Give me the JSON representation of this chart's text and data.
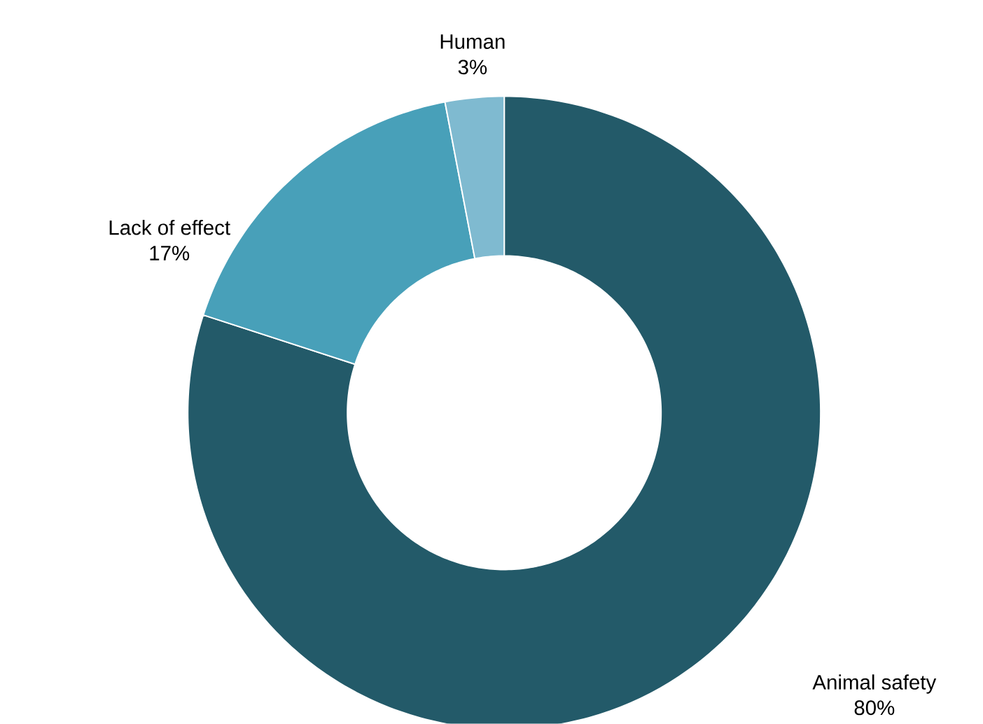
{
  "chart_data": {
    "type": "donut",
    "categories": [
      "Animal safety",
      "Lack of effect",
      "Human"
    ],
    "values": [
      80,
      17,
      3
    ],
    "value_labels": [
      "80%",
      "17%",
      "3%"
    ],
    "colors": [
      "#235a69",
      "#48a0b9",
      "#7fbad0"
    ]
  }
}
